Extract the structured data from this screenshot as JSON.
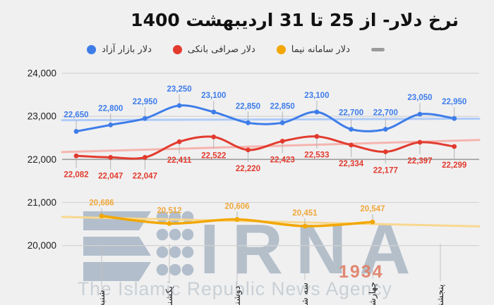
{
  "title": "نرخ دلار- از 25 تا 31 اردیبهشت 1400",
  "legend": {
    "items": [
      {
        "label": "دلار بازار آزاد",
        "color": "#3E7DE9",
        "marker": "circle"
      },
      {
        "label": "دلار صرافی بانکی",
        "color": "#E23B2E",
        "marker": "circle"
      },
      {
        "label": "دلار سامانه نیما",
        "color": "#F2A702",
        "marker": "circle"
      },
      {
        "label": "",
        "color": "#9B9B9B",
        "marker": "dash"
      }
    ]
  },
  "chart_data": {
    "type": "line",
    "title": "نرخ دلار- از 25 تا 31 اردیبهشت 1400",
    "grid": true,
    "legend_position": "top",
    "ylim": [
      19800,
      24150
    ],
    "y_ticks": [
      {
        "value": 24000,
        "label": "24,000"
      },
      {
        "value": 23000,
        "label": "23,000"
      },
      {
        "value": 22000,
        "label": "22,000"
      },
      {
        "value": 21000,
        "label": "21,000"
      },
      {
        "value": 20000,
        "label": "20,000"
      }
    ],
    "x_categories": [
      "شنبه",
      "یکشنبه",
      "دوشنبه",
      "سه شنبه",
      "چهارشنبه",
      "پنجشنبه"
    ],
    "series": [
      {
        "name": "دلار بازار آزاد",
        "color": "#3E7DE9",
        "label_side": "above",
        "values": [
          22650,
          22800,
          22950,
          23250,
          23100,
          22850,
          22850,
          23100,
          22700,
          22700,
          23050,
          22950
        ],
        "labels": [
          "22,650",
          "22,800",
          "22,950",
          "23,250",
          "23,100",
          "22,850",
          "22,850",
          "23,100",
          "22,700",
          "22,700",
          "23,050",
          "22,950"
        ],
        "trend": {
          "start": 22910,
          "end": 22945,
          "color": "#AFCBF8"
        }
      },
      {
        "name": "دلار صرافی بانکی",
        "color": "#E23B2E",
        "label_side": "below",
        "values": [
          22082,
          22047,
          22047,
          22411,
          22522,
          22220,
          22423,
          22533,
          22334,
          22177,
          22397,
          22299
        ],
        "labels": [
          "22,082",
          "22,047",
          "22,047",
          "22,411",
          "22,522",
          "22,220",
          "22,423",
          "22,533",
          "22,334",
          "22,177",
          "22,397",
          "22,299"
        ],
        "trend": {
          "start": 22170,
          "end": 22450,
          "color": "#F5B5AF"
        }
      },
      {
        "name": "دلار سامانه نیما",
        "color": "#F2A702",
        "label_color": "#EFA83B",
        "label_side": "above",
        "values": [
          20686,
          20512,
          20606,
          20451,
          20547
        ],
        "labels": [
          "20,686",
          "20,512",
          "20,606",
          "20,451",
          "20,547"
        ],
        "on_ticks": true,
        "trend": {
          "start": 20665,
          "end": 20445,
          "color": "#F8D88F"
        }
      }
    ]
  },
  "watermark": {
    "logo_text": "IRNA",
    "year": "1934",
    "subtitle": "The Islamic Republic News Agency"
  }
}
